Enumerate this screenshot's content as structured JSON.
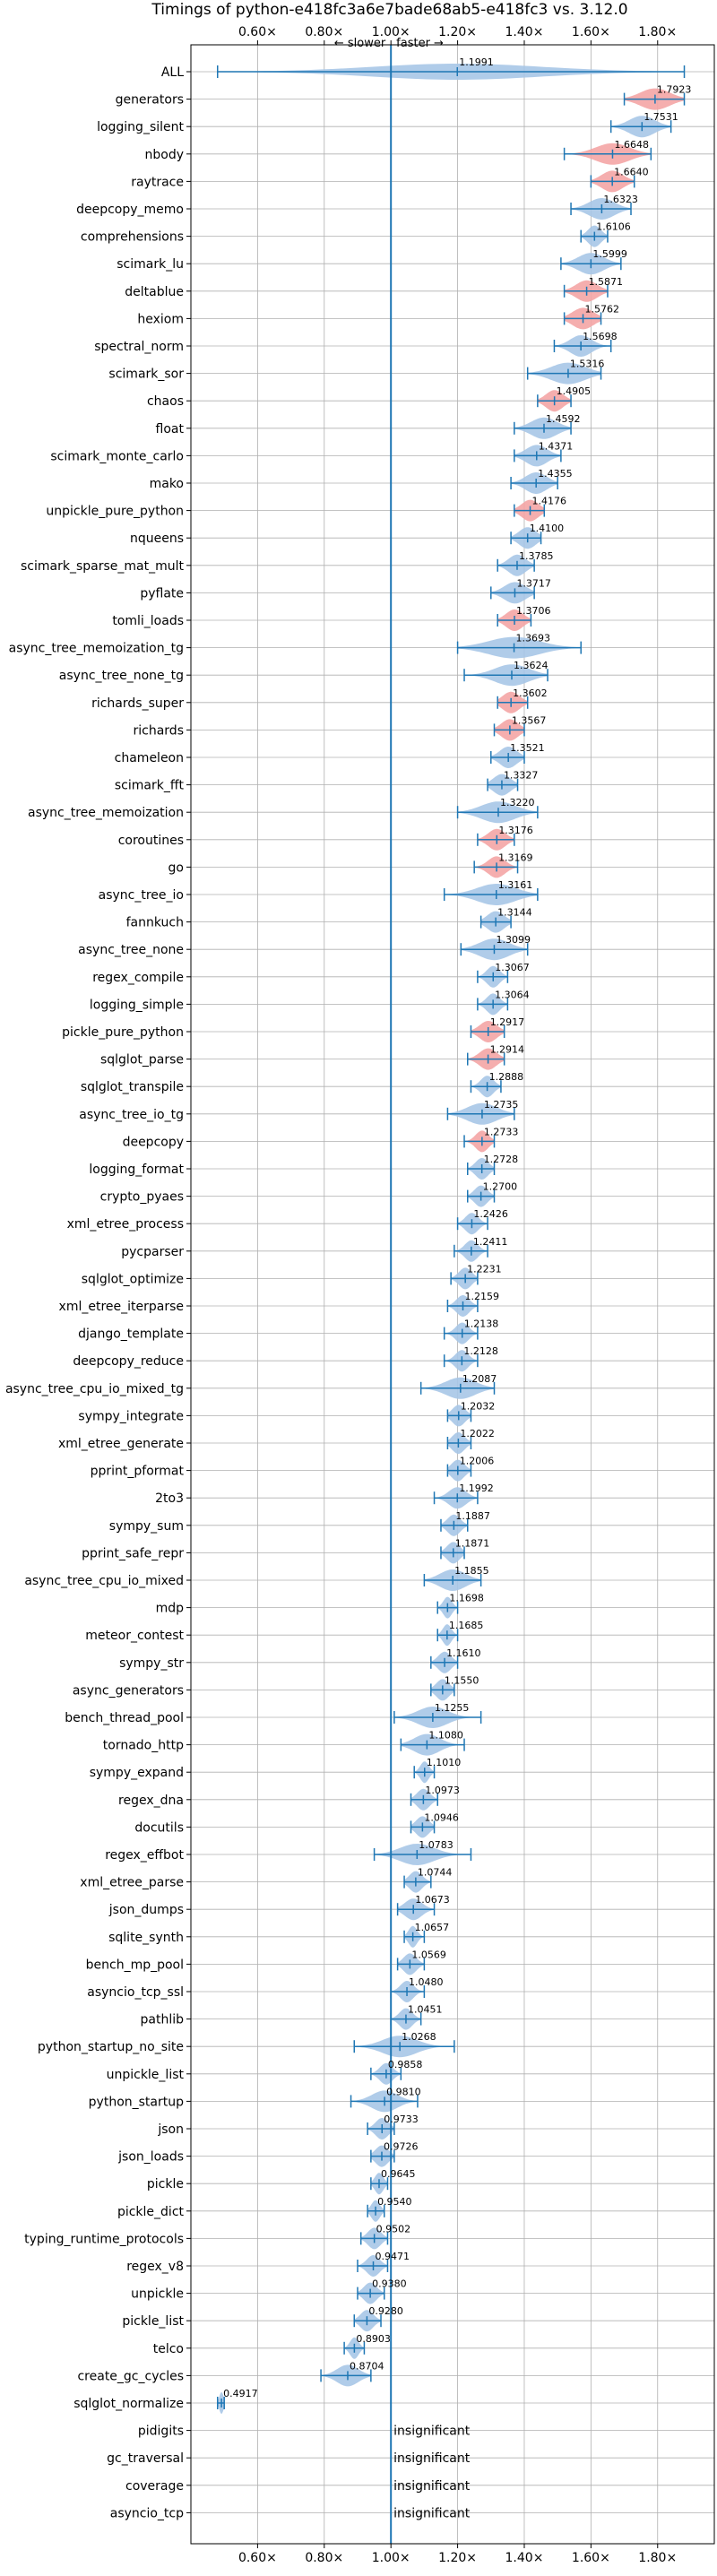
{
  "chart_data": {
    "type": "violin",
    "title": "Timings of python-e418fc3a6e7bade68ab5-e418fc3 vs. 3.12.0",
    "xlabel": "",
    "ylabel": "",
    "xlim": [
      0.4,
      1.97
    ],
    "xticks": [
      "0.60×",
      "0.80×",
      "1.00×",
      "1.20×",
      "1.40×",
      "1.60×",
      "1.80×"
    ],
    "xtick_values": [
      0.6,
      0.8,
      1.0,
      1.2,
      1.4,
      1.6,
      1.8
    ],
    "direction_labels": {
      "slower": "← slower",
      "faster": "faster →"
    },
    "insignificant_label": "insignificant",
    "grid": true,
    "colors": {
      "faster": "#a7c7e7",
      "slower": "#f4a5a5",
      "line": "#1f77b4",
      "grid": "#b0b0b0"
    },
    "rows": [
      {
        "name": "ALL",
        "value": 1.1991,
        "label": "1.1991",
        "color": "blue",
        "whisker": [
          0.48,
          1.88
        ],
        "spread": 0.4
      },
      {
        "name": "generators",
        "value": 1.7923,
        "label": "1.7923",
        "color": "red",
        "whisker": [
          1.7,
          1.88
        ],
        "spread": 0.07
      },
      {
        "name": "logging_silent",
        "value": 1.7531,
        "label": "1.7531",
        "color": "blue",
        "whisker": [
          1.66,
          1.84
        ],
        "spread": 0.06
      },
      {
        "name": "nbody",
        "value": 1.6648,
        "label": "1.6648",
        "color": "red",
        "whisker": [
          1.52,
          1.78
        ],
        "spread": 0.08
      },
      {
        "name": "raytrace",
        "value": 1.664,
        "label": "1.6640",
        "color": "red",
        "whisker": [
          1.6,
          1.73
        ],
        "spread": 0.05
      },
      {
        "name": "deepcopy_memo",
        "value": 1.6323,
        "label": "1.6323",
        "color": "blue",
        "whisker": [
          1.54,
          1.72
        ],
        "spread": 0.06
      },
      {
        "name": "comprehensions",
        "value": 1.6106,
        "label": "1.6106",
        "color": "blue",
        "whisker": [
          1.57,
          1.65
        ],
        "spread": 0.03
      },
      {
        "name": "scimark_lu",
        "value": 1.5999,
        "label": "1.5999",
        "color": "blue",
        "whisker": [
          1.51,
          1.69
        ],
        "spread": 0.06
      },
      {
        "name": "deltablue",
        "value": 1.5871,
        "label": "1.5871",
        "color": "red",
        "whisker": [
          1.52,
          1.65
        ],
        "spread": 0.05
      },
      {
        "name": "hexiom",
        "value": 1.5762,
        "label": "1.5762",
        "color": "red",
        "whisker": [
          1.52,
          1.63
        ],
        "spread": 0.05
      },
      {
        "name": "spectral_norm",
        "value": 1.5698,
        "label": "1.5698",
        "color": "blue",
        "whisker": [
          1.49,
          1.66
        ],
        "spread": 0.05
      },
      {
        "name": "scimark_sor",
        "value": 1.5316,
        "label": "1.5316",
        "color": "blue",
        "whisker": [
          1.41,
          1.63
        ],
        "spread": 0.08
      },
      {
        "name": "chaos",
        "value": 1.4905,
        "label": "1.4905",
        "color": "red",
        "whisker": [
          1.44,
          1.54
        ],
        "spread": 0.04
      },
      {
        "name": "float",
        "value": 1.4592,
        "label": "1.4592",
        "color": "blue",
        "whisker": [
          1.37,
          1.54
        ],
        "spread": 0.06
      },
      {
        "name": "scimark_monte_carlo",
        "value": 1.4371,
        "label": "1.4371",
        "color": "blue",
        "whisker": [
          1.37,
          1.51
        ],
        "spread": 0.05
      },
      {
        "name": "mako",
        "value": 1.4355,
        "label": "1.4355",
        "color": "blue",
        "whisker": [
          1.36,
          1.5
        ],
        "spread": 0.05
      },
      {
        "name": "unpickle_pure_python",
        "value": 1.4176,
        "label": "1.4176",
        "color": "red",
        "whisker": [
          1.37,
          1.46
        ],
        "spread": 0.04
      },
      {
        "name": "nqueens",
        "value": 1.41,
        "label": "1.4100",
        "color": "blue",
        "whisker": [
          1.36,
          1.45
        ],
        "spread": 0.04
      },
      {
        "name": "scimark_sparse_mat_mult",
        "value": 1.3785,
        "label": "1.3785",
        "color": "blue",
        "whisker": [
          1.32,
          1.43
        ],
        "spread": 0.04
      },
      {
        "name": "pyflate",
        "value": 1.3717,
        "label": "1.3717",
        "color": "blue",
        "whisker": [
          1.3,
          1.43
        ],
        "spread": 0.05
      },
      {
        "name": "tomli_loads",
        "value": 1.3706,
        "label": "1.3706",
        "color": "red",
        "whisker": [
          1.32,
          1.42
        ],
        "spread": 0.04
      },
      {
        "name": "async_tree_memoization_tg",
        "value": 1.3693,
        "label": "1.3693",
        "color": "blue",
        "whisker": [
          1.2,
          1.57
        ],
        "spread": 0.12
      },
      {
        "name": "async_tree_none_tg",
        "value": 1.3624,
        "label": "1.3624",
        "color": "blue",
        "whisker": [
          1.22,
          1.47
        ],
        "spread": 0.08
      },
      {
        "name": "richards_super",
        "value": 1.3602,
        "label": "1.3602",
        "color": "red",
        "whisker": [
          1.32,
          1.41
        ],
        "spread": 0.04
      },
      {
        "name": "richards",
        "value": 1.3567,
        "label": "1.3567",
        "color": "red",
        "whisker": [
          1.31,
          1.4
        ],
        "spread": 0.04
      },
      {
        "name": "chameleon",
        "value": 1.3521,
        "label": "1.3521",
        "color": "blue",
        "whisker": [
          1.3,
          1.4
        ],
        "spread": 0.04
      },
      {
        "name": "scimark_fft",
        "value": 1.3327,
        "label": "1.3327",
        "color": "blue",
        "whisker": [
          1.29,
          1.38
        ],
        "spread": 0.04
      },
      {
        "name": "async_tree_memoization",
        "value": 1.322,
        "label": "1.3220",
        "color": "blue",
        "whisker": [
          1.2,
          1.44
        ],
        "spread": 0.08
      },
      {
        "name": "coroutines",
        "value": 1.3176,
        "label": "1.3176",
        "color": "red",
        "whisker": [
          1.26,
          1.37
        ],
        "spread": 0.04
      },
      {
        "name": "go",
        "value": 1.3169,
        "label": "1.3169",
        "color": "red",
        "whisker": [
          1.25,
          1.38
        ],
        "spread": 0.04
      },
      {
        "name": "async_tree_io",
        "value": 1.3161,
        "label": "1.3161",
        "color": "blue",
        "whisker": [
          1.16,
          1.44
        ],
        "spread": 0.09
      },
      {
        "name": "fannkuch",
        "value": 1.3144,
        "label": "1.3144",
        "color": "blue",
        "whisker": [
          1.27,
          1.36
        ],
        "spread": 0.04
      },
      {
        "name": "async_tree_none",
        "value": 1.3099,
        "label": "1.3099",
        "color": "blue",
        "whisker": [
          1.21,
          1.41
        ],
        "spread": 0.07
      },
      {
        "name": "regex_compile",
        "value": 1.3067,
        "label": "1.3067",
        "color": "blue",
        "whisker": [
          1.26,
          1.35
        ],
        "spread": 0.03
      },
      {
        "name": "logging_simple",
        "value": 1.3064,
        "label": "1.3064",
        "color": "blue",
        "whisker": [
          1.26,
          1.35
        ],
        "spread": 0.03
      },
      {
        "name": "pickle_pure_python",
        "value": 1.2917,
        "label": "1.2917",
        "color": "red",
        "whisker": [
          1.24,
          1.34
        ],
        "spread": 0.04
      },
      {
        "name": "sqlglot_parse",
        "value": 1.2914,
        "label": "1.2914",
        "color": "red",
        "whisker": [
          1.23,
          1.34
        ],
        "spread": 0.04
      },
      {
        "name": "sqlglot_transpile",
        "value": 1.2888,
        "label": "1.2888",
        "color": "blue",
        "whisker": [
          1.24,
          1.33
        ],
        "spread": 0.03
      },
      {
        "name": "async_tree_io_tg",
        "value": 1.2735,
        "label": "1.2735",
        "color": "blue",
        "whisker": [
          1.17,
          1.37
        ],
        "spread": 0.07
      },
      {
        "name": "deepcopy",
        "value": 1.2733,
        "label": "1.2733",
        "color": "red",
        "whisker": [
          1.22,
          1.31
        ],
        "spread": 0.03
      },
      {
        "name": "logging_format",
        "value": 1.2728,
        "label": "1.2728",
        "color": "blue",
        "whisker": [
          1.23,
          1.31
        ],
        "spread": 0.03
      },
      {
        "name": "crypto_pyaes",
        "value": 1.27,
        "label": "1.2700",
        "color": "blue",
        "whisker": [
          1.23,
          1.31
        ],
        "spread": 0.03
      },
      {
        "name": "xml_etree_process",
        "value": 1.2426,
        "label": "1.2426",
        "color": "blue",
        "whisker": [
          1.2,
          1.29
        ],
        "spread": 0.03
      },
      {
        "name": "pycparser",
        "value": 1.2411,
        "label": "1.2411",
        "color": "blue",
        "whisker": [
          1.19,
          1.29
        ],
        "spread": 0.03
      },
      {
        "name": "sqlglot_optimize",
        "value": 1.2231,
        "label": "1.2231",
        "color": "blue",
        "whisker": [
          1.18,
          1.26
        ],
        "spread": 0.03
      },
      {
        "name": "xml_etree_iterparse",
        "value": 1.2159,
        "label": "1.2159",
        "color": "blue",
        "whisker": [
          1.17,
          1.26
        ],
        "spread": 0.03
      },
      {
        "name": "django_template",
        "value": 1.2138,
        "label": "1.2138",
        "color": "blue",
        "whisker": [
          1.16,
          1.26
        ],
        "spread": 0.03
      },
      {
        "name": "deepcopy_reduce",
        "value": 1.2128,
        "label": "1.2128",
        "color": "blue",
        "whisker": [
          1.16,
          1.26
        ],
        "spread": 0.03
      },
      {
        "name": "async_tree_cpu_io_mixed_tg",
        "value": 1.2087,
        "label": "1.2087",
        "color": "blue",
        "whisker": [
          1.09,
          1.31
        ],
        "spread": 0.07
      },
      {
        "name": "sympy_integrate",
        "value": 1.2032,
        "label": "1.2032",
        "color": "blue",
        "whisker": [
          1.17,
          1.24
        ],
        "spread": 0.03
      },
      {
        "name": "xml_etree_generate",
        "value": 1.2022,
        "label": "1.2022",
        "color": "blue",
        "whisker": [
          1.17,
          1.24
        ],
        "spread": 0.03
      },
      {
        "name": "pprint_pformat",
        "value": 1.2006,
        "label": "1.2006",
        "color": "blue",
        "whisker": [
          1.17,
          1.24
        ],
        "spread": 0.03
      },
      {
        "name": "2to3",
        "value": 1.1992,
        "label": "1.1992",
        "color": "blue",
        "whisker": [
          1.13,
          1.26
        ],
        "spread": 0.04
      },
      {
        "name": "sympy_sum",
        "value": 1.1887,
        "label": "1.1887",
        "color": "blue",
        "whisker": [
          1.15,
          1.23
        ],
        "spread": 0.03
      },
      {
        "name": "pprint_safe_repr",
        "value": 1.1871,
        "label": "1.1871",
        "color": "blue",
        "whisker": [
          1.15,
          1.22
        ],
        "spread": 0.03
      },
      {
        "name": "async_tree_cpu_io_mixed",
        "value": 1.1855,
        "label": "1.1855",
        "color": "blue",
        "whisker": [
          1.1,
          1.27
        ],
        "spread": 0.06
      },
      {
        "name": "mdp",
        "value": 1.1698,
        "label": "1.1698",
        "color": "blue",
        "whisker": [
          1.14,
          1.2
        ],
        "spread": 0.02
      },
      {
        "name": "meteor_contest",
        "value": 1.1685,
        "label": "1.1685",
        "color": "blue",
        "whisker": [
          1.14,
          1.2
        ],
        "spread": 0.02
      },
      {
        "name": "sympy_str",
        "value": 1.161,
        "label": "1.1610",
        "color": "blue",
        "whisker": [
          1.12,
          1.2
        ],
        "spread": 0.03
      },
      {
        "name": "async_generators",
        "value": 1.155,
        "label": "1.1550",
        "color": "blue",
        "whisker": [
          1.12,
          1.19
        ],
        "spread": 0.03
      },
      {
        "name": "bench_thread_pool",
        "value": 1.1255,
        "label": "1.1255",
        "color": "blue",
        "whisker": [
          1.01,
          1.27
        ],
        "spread": 0.07
      },
      {
        "name": "tornado_http",
        "value": 1.108,
        "label": "1.1080",
        "color": "blue",
        "whisker": [
          1.03,
          1.22
        ],
        "spread": 0.06
      },
      {
        "name": "sympy_expand",
        "value": 1.101,
        "label": "1.1010",
        "color": "blue",
        "whisker": [
          1.07,
          1.13
        ],
        "spread": 0.02
      },
      {
        "name": "regex_dna",
        "value": 1.0973,
        "label": "1.0973",
        "color": "blue",
        "whisker": [
          1.06,
          1.14
        ],
        "spread": 0.03
      },
      {
        "name": "docutils",
        "value": 1.0946,
        "label": "1.0946",
        "color": "blue",
        "whisker": [
          1.06,
          1.13
        ],
        "spread": 0.03
      },
      {
        "name": "regex_effbot",
        "value": 1.0783,
        "label": "1.0783",
        "color": "blue",
        "whisker": [
          0.95,
          1.24
        ],
        "spread": 0.08
      },
      {
        "name": "xml_etree_parse",
        "value": 1.0744,
        "label": "1.0744",
        "color": "blue",
        "whisker": [
          1.04,
          1.12
        ],
        "spread": 0.03
      },
      {
        "name": "json_dumps",
        "value": 1.0673,
        "label": "1.0673",
        "color": "blue",
        "whisker": [
          1.02,
          1.13
        ],
        "spread": 0.04
      },
      {
        "name": "sqlite_synth",
        "value": 1.0657,
        "label": "1.0657",
        "color": "blue",
        "whisker": [
          1.04,
          1.1
        ],
        "spread": 0.02
      },
      {
        "name": "bench_mp_pool",
        "value": 1.0569,
        "label": "1.0569",
        "color": "blue",
        "whisker": [
          1.02,
          1.1
        ],
        "spread": 0.03
      },
      {
        "name": "asyncio_tcp_ssl",
        "value": 1.048,
        "label": "1.0480",
        "color": "blue",
        "whisker": [
          1.0,
          1.1
        ],
        "spread": 0.03
      },
      {
        "name": "pathlib",
        "value": 1.0451,
        "label": "1.0451",
        "color": "blue",
        "whisker": [
          1.0,
          1.09
        ],
        "spread": 0.03
      },
      {
        "name": "python_startup_no_site",
        "value": 1.0268,
        "label": "1.0268",
        "color": "blue",
        "whisker": [
          0.89,
          1.19
        ],
        "spread": 0.08
      },
      {
        "name": "unpickle_list",
        "value": 0.9858,
        "label": "0.9858",
        "color": "blue",
        "whisker": [
          0.94,
          1.03
        ],
        "spread": 0.03
      },
      {
        "name": "python_startup",
        "value": 0.981,
        "label": "0.9810",
        "color": "blue",
        "whisker": [
          0.88,
          1.08
        ],
        "spread": 0.06
      },
      {
        "name": "json",
        "value": 0.9733,
        "label": "0.9733",
        "color": "blue",
        "whisker": [
          0.93,
          1.01
        ],
        "spread": 0.03
      },
      {
        "name": "json_loads",
        "value": 0.9726,
        "label": "0.9726",
        "color": "blue",
        "whisker": [
          0.94,
          1.01
        ],
        "spread": 0.03
      },
      {
        "name": "pickle",
        "value": 0.9645,
        "label": "0.9645",
        "color": "blue",
        "whisker": [
          0.94,
          0.99
        ],
        "spread": 0.02
      },
      {
        "name": "pickle_dict",
        "value": 0.954,
        "label": "0.9540",
        "color": "blue",
        "whisker": [
          0.93,
          0.98
        ],
        "spread": 0.02
      },
      {
        "name": "typing_runtime_protocols",
        "value": 0.9502,
        "label": "0.9502",
        "color": "blue",
        "whisker": [
          0.91,
          0.99
        ],
        "spread": 0.03
      },
      {
        "name": "regex_v8",
        "value": 0.9471,
        "label": "0.9471",
        "color": "blue",
        "whisker": [
          0.9,
          0.99
        ],
        "spread": 0.03
      },
      {
        "name": "unpickle",
        "value": 0.938,
        "label": "0.9380",
        "color": "blue",
        "whisker": [
          0.9,
          0.98
        ],
        "spread": 0.03
      },
      {
        "name": "pickle_list",
        "value": 0.928,
        "label": "0.9280",
        "color": "blue",
        "whisker": [
          0.89,
          0.97
        ],
        "spread": 0.03
      },
      {
        "name": "telco",
        "value": 0.8903,
        "label": "0.8903",
        "color": "blue",
        "whisker": [
          0.86,
          0.92
        ],
        "spread": 0.02
      },
      {
        "name": "create_gc_cycles",
        "value": 0.8704,
        "label": "0.8704",
        "color": "blue",
        "whisker": [
          0.79,
          0.94
        ],
        "spread": 0.05
      },
      {
        "name": "sqlglot_normalize",
        "value": 0.4917,
        "label": "0.4917",
        "color": "blue",
        "whisker": [
          0.48,
          0.5
        ],
        "spread": 0.01
      },
      {
        "name": "pidigits",
        "value": null,
        "label": "insignificant",
        "color": "none"
      },
      {
        "name": "gc_traversal",
        "value": null,
        "label": "insignificant",
        "color": "none"
      },
      {
        "name": "coverage",
        "value": null,
        "label": "insignificant",
        "color": "none"
      },
      {
        "name": "asyncio_tcp",
        "value": null,
        "label": "insignificant",
        "color": "none"
      }
    ]
  }
}
